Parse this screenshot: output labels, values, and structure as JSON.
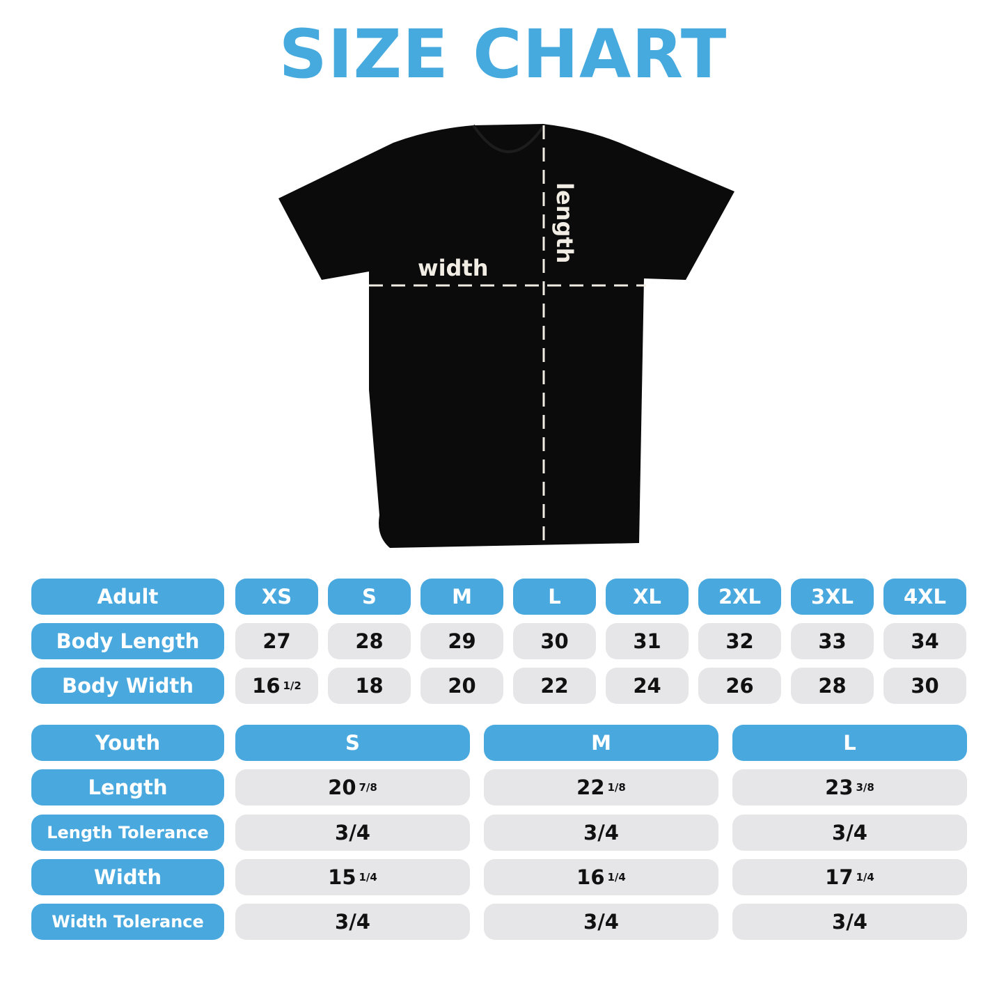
{
  "title": "SIZE CHART",
  "colors": {
    "accent": "#49a9df",
    "cell": "#e6e6e8",
    "shirt": "#0b0b0b"
  },
  "diagram": {
    "width_label": "width",
    "length_label": "length"
  },
  "adult": {
    "header": "Adult",
    "sizes": [
      "XS",
      "S",
      "M",
      "L",
      "XL",
      "2XL",
      "3XL",
      "4XL"
    ],
    "rows": [
      {
        "label": "Body Length",
        "values": [
          {
            "v": "27"
          },
          {
            "v": "28"
          },
          {
            "v": "29"
          },
          {
            "v": "30"
          },
          {
            "v": "31"
          },
          {
            "v": "32"
          },
          {
            "v": "33"
          },
          {
            "v": "34"
          }
        ]
      },
      {
        "label": "Body Width",
        "values": [
          {
            "v": "16",
            "f": "1/2"
          },
          {
            "v": "18"
          },
          {
            "v": "20"
          },
          {
            "v": "22"
          },
          {
            "v": "24"
          },
          {
            "v": "26"
          },
          {
            "v": "28"
          },
          {
            "v": "30"
          }
        ]
      }
    ]
  },
  "youth": {
    "header": "Youth",
    "sizes": [
      "S",
      "M",
      "L"
    ],
    "rows": [
      {
        "label": "Length",
        "values": [
          {
            "v": "20",
            "f": "7/8"
          },
          {
            "v": "22",
            "f": "1/8"
          },
          {
            "v": "23",
            "f": "3/8"
          }
        ]
      },
      {
        "label": "Length Tolerance",
        "values": [
          {
            "v": "3/4"
          },
          {
            "v": "3/4"
          },
          {
            "v": "3/4"
          }
        ]
      },
      {
        "label": "Width",
        "values": [
          {
            "v": "15",
            "f": "1/4"
          },
          {
            "v": "16",
            "f": "1/4"
          },
          {
            "v": "17",
            "f": "1/4"
          }
        ]
      },
      {
        "label": "Width Tolerance",
        "values": [
          {
            "v": "3/4"
          },
          {
            "v": "3/4"
          },
          {
            "v": "3/4"
          }
        ]
      }
    ]
  }
}
